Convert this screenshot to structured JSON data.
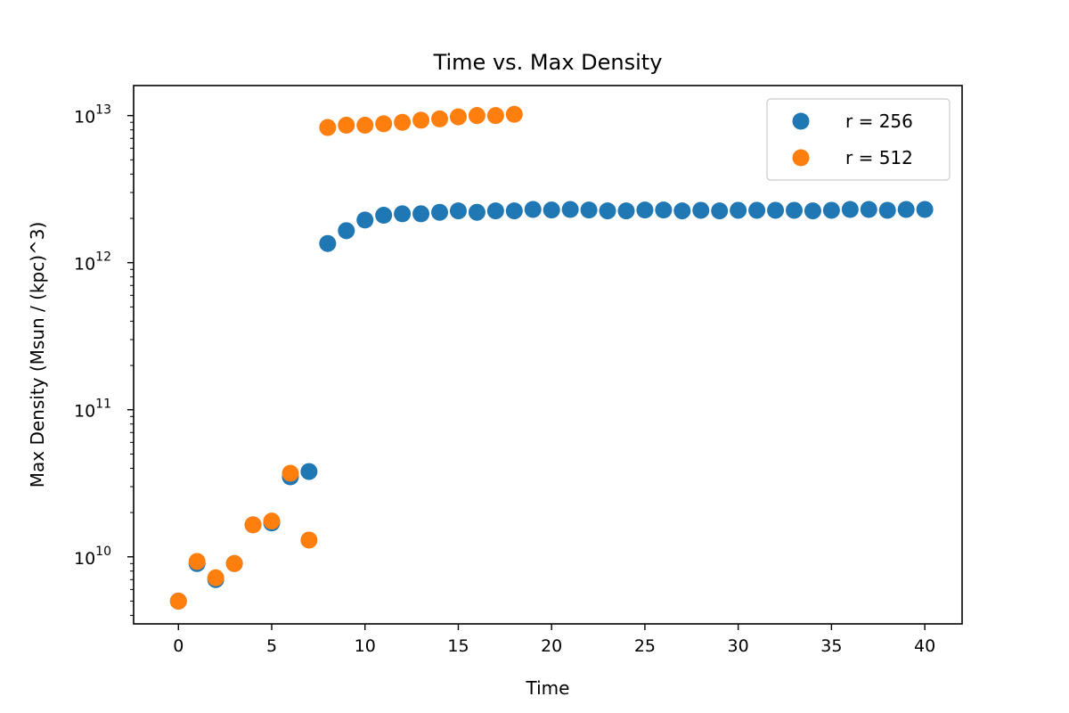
{
  "chart_data": {
    "type": "scatter",
    "title": "Time vs. Max Density",
    "xlabel": "Time",
    "ylabel": "Max Density (Msun / (kpc)^3)",
    "xlim": [
      -2.4,
      42
    ],
    "ylim": [
      3500000000.0,
      16000000000000.0
    ],
    "yscale": "log",
    "grid": false,
    "legend_position": "top-right",
    "x_ticks": [
      0,
      5,
      10,
      15,
      20,
      25,
      30,
      35,
      40
    ],
    "y_ticks": [
      {
        "value": 10000000000.0,
        "base": "10",
        "exp": "10"
      },
      {
        "value": 100000000000.0,
        "base": "10",
        "exp": "11"
      },
      {
        "value": 1000000000000.0,
        "base": "10",
        "exp": "12"
      },
      {
        "value": 10000000000000.0,
        "base": "10",
        "exp": "13"
      }
    ],
    "series": [
      {
        "name": "r = 256",
        "color": "#1f77b4",
        "x": [
          0,
          1,
          2,
          3,
          4,
          5,
          6,
          7,
          8,
          9,
          10,
          11,
          12,
          13,
          14,
          15,
          16,
          17,
          18,
          19,
          20,
          21,
          22,
          23,
          24,
          25,
          26,
          27,
          28,
          29,
          30,
          31,
          32,
          33,
          34,
          35,
          36,
          37,
          38,
          39,
          40
        ],
        "y": [
          5000000000.0,
          9000000000.0,
          7000000000.0,
          9000000000.0,
          16500000000.0,
          17000000000.0,
          35000000000.0,
          38000000000.0,
          1350000000000.0,
          1650000000000.0,
          1950000000000.0,
          2100000000000.0,
          2150000000000.0,
          2150000000000.0,
          2200000000000.0,
          2250000000000.0,
          2200000000000.0,
          2250000000000.0,
          2250000000000.0,
          2300000000000.0,
          2280000000000.0,
          2300000000000.0,
          2280000000000.0,
          2250000000000.0,
          2250000000000.0,
          2280000000000.0,
          2280000000000.0,
          2250000000000.0,
          2270000000000.0,
          2250000000000.0,
          2270000000000.0,
          2270000000000.0,
          2270000000000.0,
          2270000000000.0,
          2250000000000.0,
          2270000000000.0,
          2300000000000.0,
          2300000000000.0,
          2270000000000.0,
          2300000000000.0,
          2300000000000.0
        ]
      },
      {
        "name": "r = 512",
        "color": "#ff7f0e",
        "x": [
          0,
          1,
          2,
          3,
          4,
          5,
          6,
          7,
          8,
          9,
          10,
          11,
          12,
          13,
          14,
          15,
          16,
          17,
          18
        ],
        "y": [
          5000000000.0,
          9300000000.0,
          7200000000.0,
          9000000000.0,
          16500000000.0,
          17500000000.0,
          37000000000.0,
          13000000000.0,
          8300000000000.0,
          8600000000000.0,
          8600000000000.0,
          8800000000000.0,
          9000000000000.0,
          9300000000000.0,
          9500000000000.0,
          9800000000000.0,
          10000000000000.0,
          10000000000000.0,
          10200000000000.0
        ]
      }
    ]
  }
}
